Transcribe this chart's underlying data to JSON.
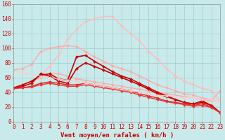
{
  "background_color": "#c8eaea",
  "grid_color": "#a0cccc",
  "xlabel": "Vent moyen/en rafales ( km/h )",
  "xlabel_color": "#cc0000",
  "xlabel_fontsize": 6.5,
  "xlim": [
    0,
    23
  ],
  "ylim": [
    0,
    160
  ],
  "yticks": [
    0,
    20,
    40,
    60,
    80,
    100,
    120,
    140,
    160
  ],
  "xticks": [
    0,
    1,
    2,
    3,
    4,
    5,
    6,
    7,
    8,
    9,
    10,
    11,
    12,
    13,
    14,
    15,
    16,
    17,
    18,
    19,
    20,
    21,
    22,
    23
  ],
  "series": [
    {
      "x": [
        0,
        1,
        2,
        3,
        4,
        5,
        6,
        7,
        8,
        9,
        10,
        11,
        12,
        13,
        14,
        15,
        16,
        17,
        18,
        19,
        20,
        21,
        22,
        23
      ],
      "y": [
        46,
        50,
        55,
        62,
        75,
        90,
        112,
        125,
        136,
        140,
        143,
        143,
        130,
        120,
        110,
        95,
        85,
        72,
        62,
        55,
        50,
        45,
        42,
        28
      ],
      "color": "#ffbbbb",
      "lw": 1.0
    },
    {
      "x": [
        0,
        1,
        2,
        3,
        4,
        5,
        6,
        7,
        8,
        9,
        10,
        11,
        12,
        13,
        14,
        15,
        16,
        17,
        18,
        19,
        20,
        21,
        22,
        23
      ],
      "y": [
        70,
        72,
        78,
        95,
        100,
        102,
        103,
        102,
        95,
        88,
        82,
        76,
        72,
        68,
        62,
        56,
        50,
        46,
        42,
        38,
        36,
        32,
        30,
        28
      ],
      "color": "#ffaaaa",
      "lw": 1.0
    },
    {
      "x": [
        0,
        1,
        2,
        3,
        4,
        5,
        6,
        7,
        8,
        9,
        10,
        11,
        12,
        13,
        14,
        15,
        16,
        17,
        18,
        19,
        20,
        21,
        22,
        23
      ],
      "y": [
        45,
        50,
        55,
        60,
        65,
        65,
        62,
        58,
        56,
        54,
        52,
        50,
        48,
        46,
        44,
        42,
        40,
        38,
        36,
        34,
        32,
        30,
        28,
        42
      ],
      "color": "#ffaaaa",
      "lw": 1.0
    },
    {
      "x": [
        0,
        1,
        2,
        3,
        4,
        5,
        6,
        7,
        8,
        9,
        10,
        11,
        12,
        13,
        14,
        15,
        16,
        17,
        18,
        19,
        20,
        21,
        22,
        23
      ],
      "y": [
        46,
        50,
        55,
        63,
        65,
        58,
        56,
        88,
        90,
        82,
        75,
        68,
        62,
        58,
        52,
        46,
        40,
        35,
        30,
        26,
        24,
        26,
        22,
        12
      ],
      "color": "#cc0000",
      "lw": 1.2
    },
    {
      "x": [
        0,
        1,
        2,
        3,
        4,
        5,
        6,
        7,
        8,
        9,
        10,
        11,
        12,
        13,
        14,
        15,
        16,
        17,
        18,
        19,
        20,
        21,
        22,
        23
      ],
      "y": [
        45,
        48,
        52,
        65,
        62,
        55,
        52,
        72,
        80,
        75,
        70,
        65,
        60,
        55,
        50,
        44,
        38,
        34,
        30,
        26,
        24,
        28,
        22,
        12
      ],
      "color": "#cc0000",
      "lw": 1.2
    },
    {
      "x": [
        0,
        1,
        2,
        3,
        4,
        5,
        6,
        7,
        8,
        9,
        10,
        11,
        12,
        13,
        14,
        15,
        16,
        17,
        18,
        19,
        20,
        21,
        22,
        23
      ],
      "y": [
        45,
        46,
        48,
        52,
        54,
        52,
        50,
        50,
        52,
        50,
        48,
        46,
        44,
        42,
        38,
        35,
        32,
        28,
        26,
        24,
        22,
        24,
        20,
        12
      ],
      "color": "#dd2222",
      "lw": 1.0
    },
    {
      "x": [
        0,
        1,
        2,
        3,
        4,
        5,
        6,
        7,
        8,
        9,
        10,
        11,
        12,
        13,
        14,
        15,
        16,
        17,
        18,
        19,
        20,
        21,
        22,
        23
      ],
      "y": [
        45,
        46,
        47,
        50,
        52,
        50,
        48,
        48,
        50,
        48,
        46,
        44,
        42,
        40,
        36,
        33,
        30,
        27,
        25,
        23,
        21,
        22,
        19,
        12
      ],
      "color": "#ee3333",
      "lw": 1.0
    },
    {
      "x": [
        0,
        1,
        2,
        3,
        4,
        5,
        6,
        7,
        8,
        9,
        10,
        11,
        12,
        13,
        14,
        15,
        16,
        17,
        18,
        19,
        20,
        21,
        22,
        23
      ],
      "y": [
        68,
        67,
        65,
        62,
        60,
        58,
        56,
        54,
        52,
        50,
        48,
        46,
        44,
        42,
        40,
        38,
        36,
        35,
        34,
        33,
        32,
        30,
        30,
        28
      ],
      "color": "#ffcccc",
      "lw": 0.8
    }
  ],
  "marker": "D",
  "markersize": 2.0,
  "tick_fontsize": 5.5,
  "tick_color": "#cc0000",
  "spine_color": "#999999"
}
